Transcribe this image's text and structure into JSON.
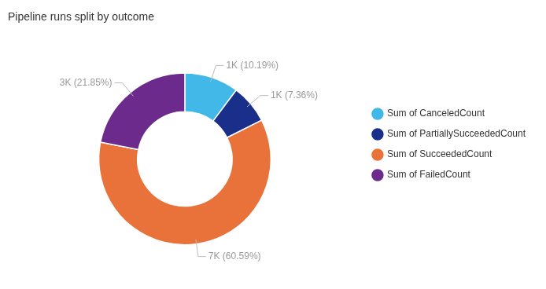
{
  "chart_data": {
    "type": "doughnut",
    "title": "Pipeline runs split by outcome",
    "categories": [
      "Sum of CanceledCount",
      "Sum of PartiallySucceededCount",
      "Sum of SucceededCount",
      "Sum of FailedCount"
    ],
    "values": [
      10.19,
      7.36,
      60.59,
      21.85
    ],
    "value_labels": [
      "1K (10.19%)",
      "1K (7.36%)",
      "7K (60.59%)",
      "3K (21.85%)"
    ],
    "colors": [
      "#41B8E8",
      "#1A2F8A",
      "#E8723A",
      "#6B2A8C"
    ],
    "legend": "right",
    "data_labels": true
  }
}
